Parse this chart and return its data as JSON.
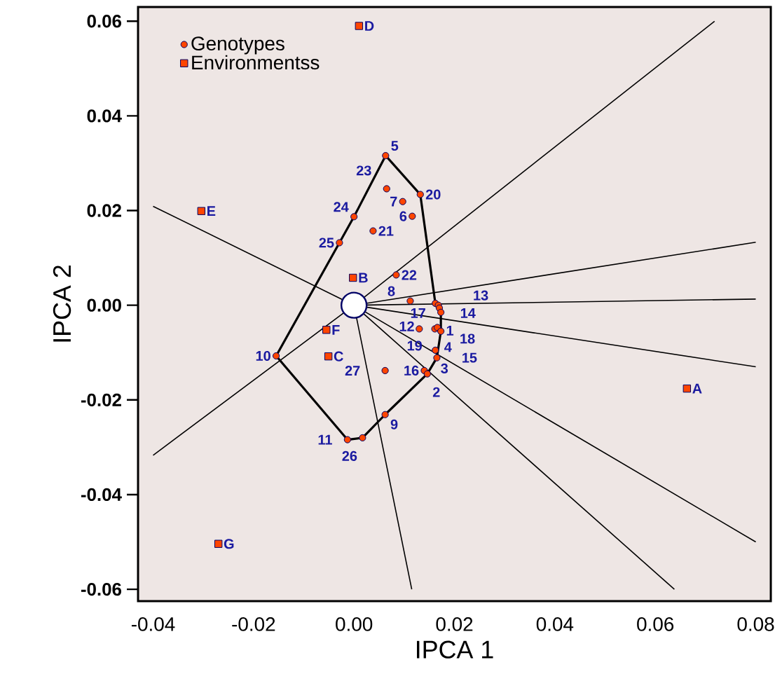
{
  "chart_data": {
    "type": "scatter",
    "xlabel": "IPCA 1",
    "ylabel": "IPCA 2",
    "xlim": [
      -0.043,
      0.083
    ],
    "ylim": [
      -0.0625,
      0.063
    ],
    "xticks": [
      {
        "value": -0.04,
        "label": "-0.04"
      },
      {
        "value": -0.02,
        "label": "-0.02"
      },
      {
        "value": 0,
        "label": "0.00"
      },
      {
        "value": 0.02,
        "label": "0.02"
      },
      {
        "value": 0.04,
        "label": "0.04"
      },
      {
        "value": 0.06,
        "label": "0.06"
      },
      {
        "value": 0.08,
        "label": "0.08"
      }
    ],
    "yticks": [
      {
        "value": -0.06,
        "label": "-0.06"
      },
      {
        "value": -0.04,
        "label": "-0.04"
      },
      {
        "value": -0.02,
        "label": "-0.02"
      },
      {
        "value": 0,
        "label": "0.00"
      },
      {
        "value": 0.02,
        "label": "0.02"
      },
      {
        "value": 0.04,
        "label": "0.04"
      },
      {
        "value": 0.06,
        "label": "0.06"
      }
    ],
    "legend": "top left",
    "grid": false,
    "series": [
      {
        "type": "scatter",
        "color": "#ffffff",
        "marker": "circle",
        "x": [
          0
        ],
        "values": [
          0
        ]
      },
      {
        "type": "line",
        "color": "#000000",
        "marker": "none",
        "x": [
          0.0063,
          0.0132,
          0.0162,
          0.0173,
          0.0173,
          0.0165,
          0.0146,
          0.0062,
          0.0017,
          -0.0013
        ],
        "values": [
          0.0316,
          0.0234,
          0.0004,
          -0.0015,
          -0.0055,
          -0.0111,
          -0.0145,
          -0.0231,
          -0.028,
          -0.0284
        ]
      },
      {
        "type": "line",
        "color": "#000000",
        "marker": "none",
        "x": [
          -0.0013,
          -0.0155,
          -0.0029,
          0.0,
          0.0063
        ],
        "values": [
          -0.0284,
          -0.0107,
          0.0132,
          0.0187,
          0.0316
        ]
      },
      {
        "type": "line",
        "color": "#000000",
        "marker": "none",
        "x": [
          0,
          0.0718
        ],
        "values": [
          0,
          0.06
        ]
      },
      {
        "type": "line",
        "color": "#000000",
        "marker": "none",
        "x": [
          0,
          0.08
        ],
        "values": [
          0,
          0.0133
        ]
      },
      {
        "type": "line",
        "color": "#000000",
        "marker": "none",
        "x": [
          0,
          0.08
        ],
        "values": [
          0,
          0.0013
        ]
      },
      {
        "type": "line",
        "color": "#000000",
        "marker": "none",
        "x": [
          0,
          0.08
        ],
        "values": [
          0,
          -0.013
        ]
      },
      {
        "type": "line",
        "color": "#000000",
        "marker": "none",
        "x": [
          0,
          0.08
        ],
        "values": [
          0,
          -0.05
        ]
      },
      {
        "type": "line",
        "color": "#000000",
        "marker": "none",
        "x": [
          0,
          0.0638
        ],
        "values": [
          0,
          -0.06
        ]
      },
      {
        "type": "line",
        "color": "#000000",
        "marker": "none",
        "x": [
          0,
          0.0115
        ],
        "values": [
          0,
          -0.06
        ]
      },
      {
        "type": "line",
        "color": "#000000",
        "marker": "none",
        "x": [
          0,
          -0.04
        ],
        "values": [
          0,
          0.0209
        ]
      },
      {
        "type": "line",
        "color": "#000000",
        "marker": "none",
        "x": [
          0,
          -0.04
        ],
        "values": [
          0,
          -0.0317
        ]
      },
      {
        "name": "Genotypes",
        "type": "scatter",
        "color": "#ff4500",
        "marker": "circle",
        "x": [
          0.0063,
          0.0065,
          0.0132,
          0.0097,
          0.0116,
          0.0,
          0.0038,
          -0.0029,
          0.0084,
          0.0112,
          0.0162,
          0.0168,
          0.017,
          0.0173,
          0.013,
          0.0161,
          0.0166,
          0.0173,
          0.0162,
          0.0165,
          0.014,
          0.0146,
          0.0062,
          0.0062,
          0.0017,
          -0.0013,
          -0.0155
        ],
        "values": [
          0.0316,
          0.0246,
          0.0234,
          0.0219,
          0.0188,
          0.0187,
          0.0157,
          0.0132,
          0.0064,
          0.0009,
          0.0004,
          0.0,
          -0.0006,
          -0.0015,
          -0.005,
          -0.005,
          -0.0047,
          -0.0055,
          -0.0095,
          -0.0111,
          -0.0138,
          -0.0145,
          -0.0138,
          -0.0231,
          -0.028,
          -0.0284,
          -0.0107
        ]
      },
      {
        "name": "Environmentss",
        "type": "scatter",
        "color": "#ff4500",
        "marker": "square",
        "x": [
          0.0663,
          -0.0002,
          -0.0051,
          0.001,
          -0.0304,
          -0.0055,
          -0.027
        ],
        "values": [
          -0.0176,
          0.0058,
          -0.0108,
          0.059,
          0.0199,
          -0.0052,
          -0.0504
        ]
      }
    ],
    "annotations": [
      {
        "text": "5",
        "x": 0.0063,
        "y": 0.0316
      },
      {
        "text": "23",
        "x": 0.0065,
        "y": 0.0246
      },
      {
        "text": "20",
        "x": 0.0132,
        "y": 0.0234
      },
      {
        "text": "7",
        "x": 0.0097,
        "y": 0.0219
      },
      {
        "text": "6",
        "x": 0.0116,
        "y": 0.0188
      },
      {
        "text": "24",
        "x": 0.0,
        "y": 0.0187
      },
      {
        "text": "21",
        "x": 0.0038,
        "y": 0.0157
      },
      {
        "text": "25",
        "x": -0.0029,
        "y": 0.0132
      },
      {
        "text": "22",
        "x": 0.0084,
        "y": 0.0064
      },
      {
        "text": "8",
        "x": 0.0112,
        "y": 0.0009
      },
      {
        "text": "14",
        "x": 0.0162,
        "y": 0.0004
      },
      {
        "text": "13",
        "x": 0.0168,
        "y": 0.0
      },
      {
        "text": "12",
        "x": 0.017,
        "y": -0.0006
      },
      {
        "text": "1",
        "x": 0.0173,
        "y": -0.0015
      },
      {
        "text": "4",
        "x": 0.013,
        "y": -0.005
      },
      {
        "text": "18",
        "x": 0.0161,
        "y": -0.005
      },
      {
        "text": "19",
        "x": 0.0166,
        "y": -0.0047
      },
      {
        "text": "17",
        "x": 0.0173,
        "y": -0.0055
      },
      {
        "text": "3",
        "x": 0.0162,
        "y": -0.0095
      },
      {
        "text": "15",
        "x": 0.0165,
        "y": -0.0111
      },
      {
        "text": "16",
        "x": 0.014,
        "y": -0.0138
      },
      {
        "text": "2",
        "x": 0.0146,
        "y": -0.0145
      },
      {
        "text": "27",
        "x": 0.0062,
        "y": -0.0138
      },
      {
        "text": "9",
        "x": 0.0062,
        "y": -0.0231
      },
      {
        "text": "26",
        "x": 0.0017,
        "y": -0.028
      },
      {
        "text": "11",
        "x": -0.0013,
        "y": -0.0284
      },
      {
        "text": "10",
        "x": -0.0155,
        "y": -0.0107
      },
      {
        "text": "A",
        "x": 0.0663,
        "y": -0.0176
      },
      {
        "text": "B",
        "x": -0.0002,
        "y": 0.0058
      },
      {
        "text": "C",
        "x": -0.0051,
        "y": -0.0108
      },
      {
        "text": "D",
        "x": 0.001,
        "y": 0.059
      },
      {
        "text": "E",
        "x": -0.0304,
        "y": 0.0199
      },
      {
        "text": "F",
        "x": -0.0055,
        "y": -0.0052
      },
      {
        "text": "G",
        "x": -0.027,
        "y": -0.0504
      }
    ]
  }
}
